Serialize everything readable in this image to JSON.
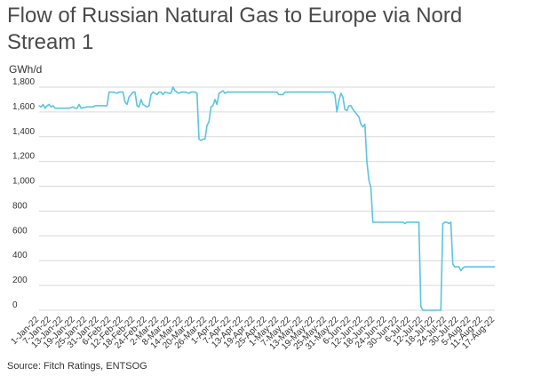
{
  "title": "Flow of Russian Natural Gas to Europe via Nord Stream 1",
  "unit": "GWh/d",
  "source": "Source: Fitch Ratings, ENTSOG",
  "colors": {
    "line": "#5bc4de",
    "grid": "#d9d9d9",
    "text": "#333333"
  },
  "chart_data": {
    "type": "line",
    "title": "Flow of Russian Natural Gas to Europe via Nord Stream 1",
    "ylabel": "GWh/d",
    "xlabel": "",
    "ylim": [
      0,
      1800
    ],
    "yticks": [
      "0",
      "200",
      "400",
      "600",
      "800",
      "1,000",
      "1,200",
      "1,400",
      "1,600",
      "1,800"
    ],
    "grid": true,
    "legend": "none",
    "x_tick_labels": [
      "1-Jan-22",
      "7-Jan-22",
      "13-Jan-22",
      "19-Jan-22",
      "25-Jan-22",
      "31-Jan-22",
      "6-Feb-22",
      "12-Feb-22",
      "18-Feb-22",
      "24-Feb-22",
      "2-Mar-22",
      "8-Mar-22",
      "14-Mar-22",
      "20-Mar-22",
      "26-Mar-22",
      "1-Apr-22",
      "7-Apr-22",
      "13-Apr-22",
      "19-Apr-22",
      "25-Apr-22",
      "1-May-22",
      "7-May-22",
      "13-May-22",
      "19-May-22",
      "25-May-22",
      "31-May-22",
      "6-Jun-22",
      "12-Jun-22",
      "18-Jun-22",
      "24-Jun-22",
      "30-Jun-22",
      "6-Jul-22",
      "12-Jul-22",
      "18-Jul-22",
      "24-Jul-22",
      "30-Jul-22",
      "5-Aug-22",
      "11-Aug-22",
      "17-Aug-22"
    ],
    "x_range": [
      "2022-01-01",
      "2022-08-17"
    ],
    "series": [
      {
        "points": [
          [
            "2022-01-01",
            1650
          ],
          [
            "2022-01-02",
            1640
          ],
          [
            "2022-01-03",
            1660
          ],
          [
            "2022-01-04",
            1630
          ],
          [
            "2022-01-05",
            1650
          ],
          [
            "2022-01-06",
            1660
          ],
          [
            "2022-01-07",
            1640
          ],
          [
            "2022-01-08",
            1650
          ],
          [
            "2022-01-09",
            1630
          ],
          [
            "2022-01-10",
            1630
          ],
          [
            "2022-01-13",
            1630
          ],
          [
            "2022-01-16",
            1630
          ],
          [
            "2022-01-18",
            1640
          ],
          [
            "2022-01-19",
            1630
          ],
          [
            "2022-01-20",
            1630
          ],
          [
            "2022-01-21",
            1660
          ],
          [
            "2022-01-22",
            1630
          ],
          [
            "2022-01-25",
            1640
          ],
          [
            "2022-01-28",
            1640
          ],
          [
            "2022-01-29",
            1650
          ],
          [
            "2022-01-30",
            1650
          ],
          [
            "2022-02-04",
            1650
          ],
          [
            "2022-02-05",
            1760
          ],
          [
            "2022-02-07",
            1760
          ],
          [
            "2022-02-09",
            1750
          ],
          [
            "2022-02-10",
            1760
          ],
          [
            "2022-02-12",
            1760
          ],
          [
            "2022-02-13",
            1680
          ],
          [
            "2022-02-14",
            1660
          ],
          [
            "2022-02-15",
            1720
          ],
          [
            "2022-02-16",
            1740
          ],
          [
            "2022-02-17",
            1760
          ],
          [
            "2022-02-18",
            1760
          ],
          [
            "2022-02-19",
            1650
          ],
          [
            "2022-02-20",
            1640
          ],
          [
            "2022-02-21",
            1700
          ],
          [
            "2022-02-22",
            1660
          ],
          [
            "2022-02-23",
            1650
          ],
          [
            "2022-02-24",
            1640
          ],
          [
            "2022-02-25",
            1650
          ],
          [
            "2022-02-26",
            1740
          ],
          [
            "2022-02-27",
            1760
          ],
          [
            "2022-02-28",
            1750
          ],
          [
            "2022-03-01",
            1740
          ],
          [
            "2022-03-02",
            1760
          ],
          [
            "2022-03-03",
            1760
          ],
          [
            "2022-03-04",
            1740
          ],
          [
            "2022-03-05",
            1760
          ],
          [
            "2022-03-07",
            1750
          ],
          [
            "2022-03-08",
            1750
          ],
          [
            "2022-03-09",
            1800
          ],
          [
            "2022-03-10",
            1770
          ],
          [
            "2022-03-11",
            1760
          ],
          [
            "2022-03-12",
            1750
          ],
          [
            "2022-03-13",
            1760
          ],
          [
            "2022-03-15",
            1760
          ],
          [
            "2022-03-17",
            1750
          ],
          [
            "2022-03-18",
            1760
          ],
          [
            "2022-03-19",
            1760
          ],
          [
            "2022-03-20",
            1760
          ],
          [
            "2022-03-21",
            1750
          ],
          [
            "2022-03-22",
            1380
          ],
          [
            "2022-03-23",
            1370
          ],
          [
            "2022-03-24",
            1380
          ],
          [
            "2022-03-25",
            1380
          ],
          [
            "2022-03-26",
            1490
          ],
          [
            "2022-03-27",
            1520
          ],
          [
            "2022-03-28",
            1640
          ],
          [
            "2022-03-29",
            1650
          ],
          [
            "2022-03-30",
            1700
          ],
          [
            "2022-03-31",
            1660
          ],
          [
            "2022-04-01",
            1750
          ],
          [
            "2022-04-02",
            1760
          ],
          [
            "2022-04-03",
            1770
          ],
          [
            "2022-04-04",
            1750
          ],
          [
            "2022-04-05",
            1760
          ],
          [
            "2022-04-10",
            1760
          ],
          [
            "2022-04-13",
            1760
          ],
          [
            "2022-04-16",
            1760
          ],
          [
            "2022-04-19",
            1760
          ],
          [
            "2022-04-22",
            1760
          ],
          [
            "2022-04-25",
            1760
          ],
          [
            "2022-04-28",
            1760
          ],
          [
            "2022-04-30",
            1760
          ],
          [
            "2022-05-01",
            1740
          ],
          [
            "2022-05-02",
            1740
          ],
          [
            "2022-05-03",
            1740
          ],
          [
            "2022-05-04",
            1760
          ],
          [
            "2022-05-07",
            1760
          ],
          [
            "2022-05-10",
            1760
          ],
          [
            "2022-05-13",
            1760
          ],
          [
            "2022-05-16",
            1760
          ],
          [
            "2022-05-19",
            1760
          ],
          [
            "2022-05-22",
            1760
          ],
          [
            "2022-05-25",
            1760
          ],
          [
            "2022-05-28",
            1760
          ],
          [
            "2022-05-29",
            1740
          ],
          [
            "2022-05-30",
            1600
          ],
          [
            "2022-05-31",
            1690
          ],
          [
            "2022-06-01",
            1750
          ],
          [
            "2022-06-02",
            1720
          ],
          [
            "2022-06-03",
            1620
          ],
          [
            "2022-06-04",
            1610
          ],
          [
            "2022-06-05",
            1650
          ],
          [
            "2022-06-06",
            1650
          ],
          [
            "2022-06-07",
            1620
          ],
          [
            "2022-06-08",
            1600
          ],
          [
            "2022-06-09",
            1580
          ],
          [
            "2022-06-10",
            1560
          ],
          [
            "2022-06-11",
            1500
          ],
          [
            "2022-06-12",
            1480
          ],
          [
            "2022-06-13",
            1500
          ],
          [
            "2022-06-14",
            1200
          ],
          [
            "2022-06-15",
            1050
          ],
          [
            "2022-06-16",
            990
          ],
          [
            "2022-06-17",
            710
          ],
          [
            "2022-06-18",
            710
          ],
          [
            "2022-06-22",
            710
          ],
          [
            "2022-06-26",
            710
          ],
          [
            "2022-06-30",
            710
          ],
          [
            "2022-07-02",
            710
          ],
          [
            "2022-07-03",
            700
          ],
          [
            "2022-07-04",
            710
          ],
          [
            "2022-07-05",
            710
          ],
          [
            "2022-07-06",
            710
          ],
          [
            "2022-07-07",
            710
          ],
          [
            "2022-07-09",
            710
          ],
          [
            "2022-07-10",
            710
          ],
          [
            "2022-07-11",
            30
          ],
          [
            "2022-07-12",
            0
          ],
          [
            "2022-07-15",
            0
          ],
          [
            "2022-07-18",
            0
          ],
          [
            "2022-07-21",
            0
          ],
          [
            "2022-07-22",
            700
          ],
          [
            "2022-07-23",
            710
          ],
          [
            "2022-07-24",
            710
          ],
          [
            "2022-07-25",
            700
          ],
          [
            "2022-07-26",
            710
          ],
          [
            "2022-07-27",
            370
          ],
          [
            "2022-07-28",
            350
          ],
          [
            "2022-07-29",
            350
          ],
          [
            "2022-07-30",
            350
          ],
          [
            "2022-07-31",
            320
          ],
          [
            "2022-08-01",
            340
          ],
          [
            "2022-08-02",
            350
          ],
          [
            "2022-08-06",
            350
          ],
          [
            "2022-08-10",
            350
          ],
          [
            "2022-08-14",
            350
          ],
          [
            "2022-08-17",
            350
          ]
        ]
      }
    ]
  }
}
